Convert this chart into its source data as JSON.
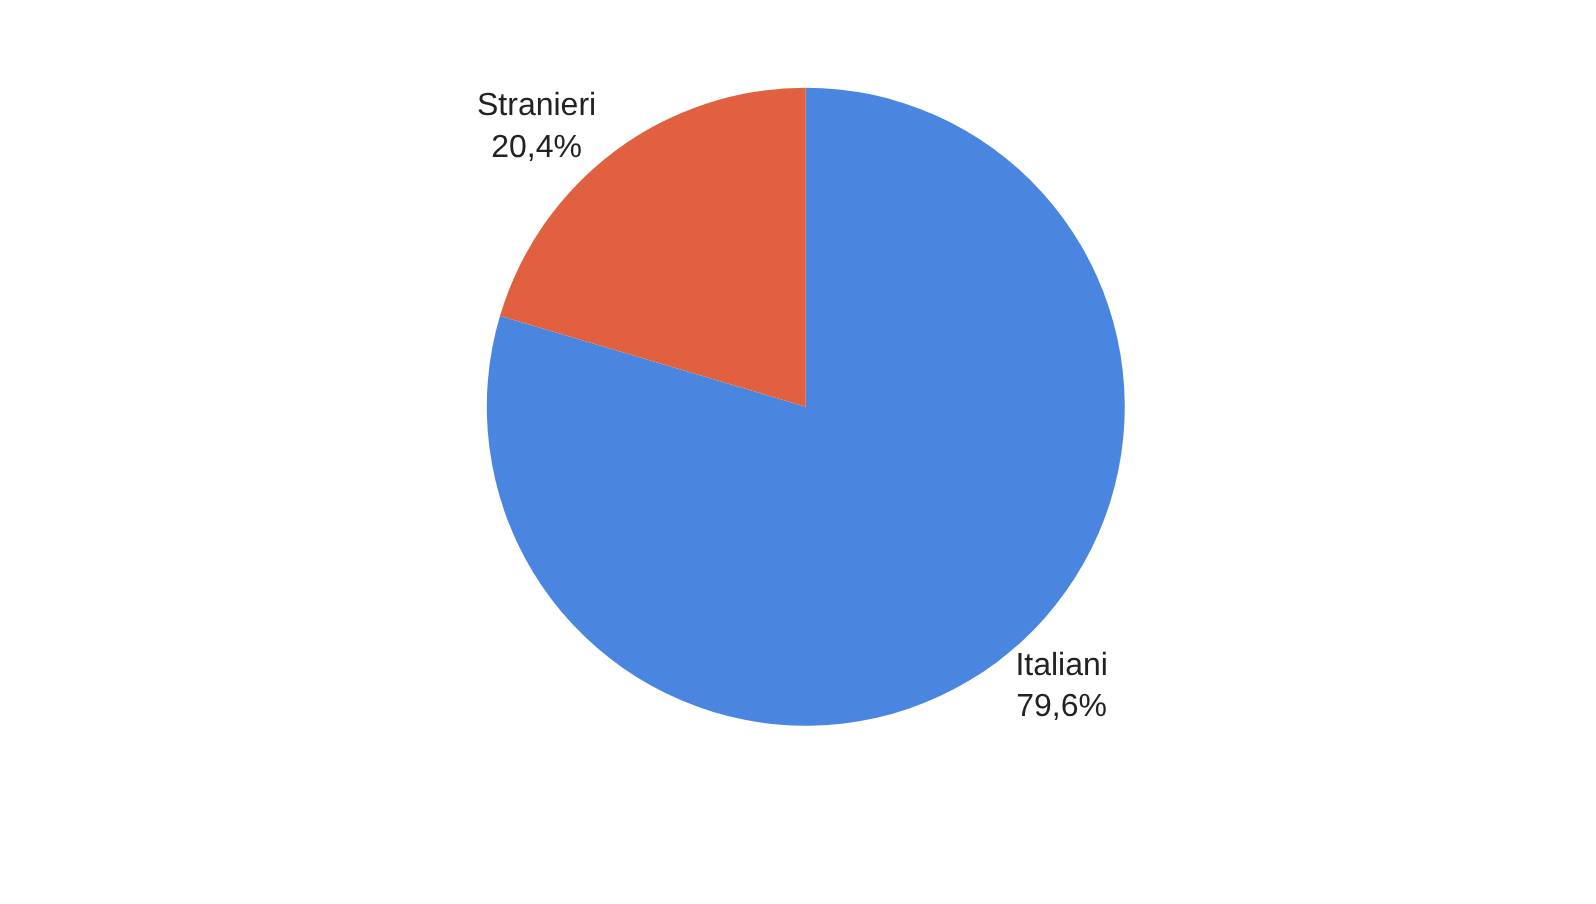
{
  "chart_data": {
    "type": "pie",
    "categories": [
      "Italiani",
      "Stranieri"
    ],
    "values": [
      79.6,
      20.4
    ],
    "colors": [
      "#4a86df",
      "#e0603f"
    ],
    "value_labels": [
      "79,6%",
      "20,4%"
    ],
    "legend": false
  }
}
